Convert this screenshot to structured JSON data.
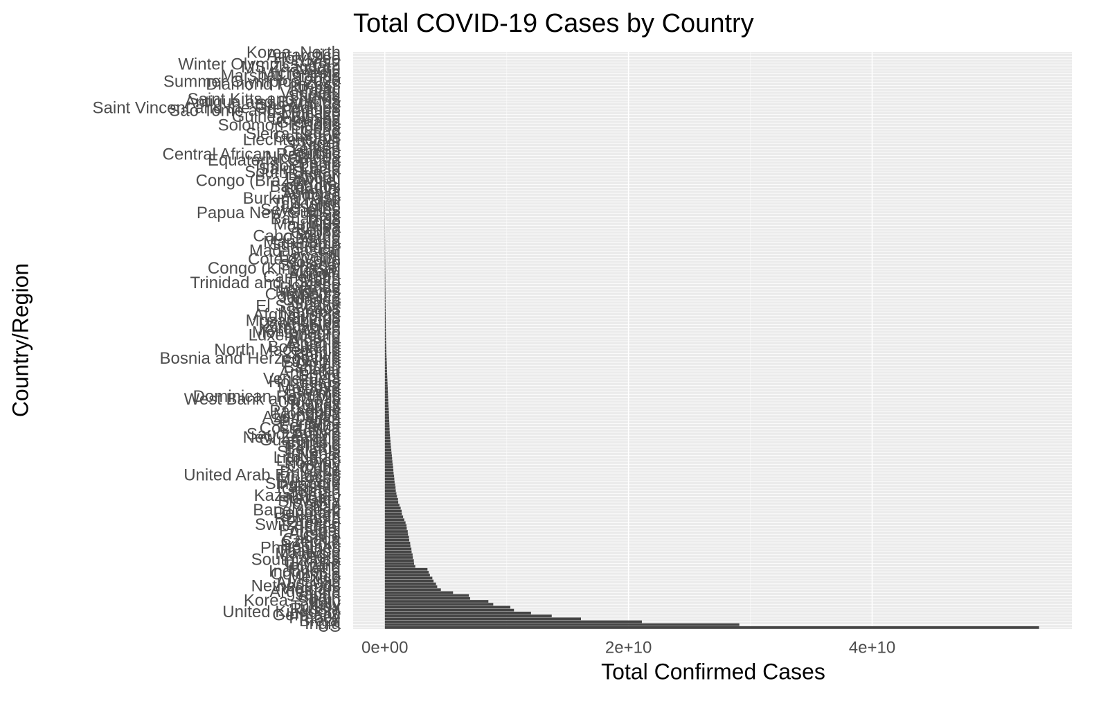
{
  "chart_data": {
    "type": "bar",
    "orientation": "horizontal",
    "title": "Total COVID-19 Cases by Country",
    "x_label": "Total Confirmed Cases",
    "y_label": "Country/Region",
    "color": "#454545",
    "grid": true,
    "xlim": [
      -2600000000.0,
      56400000000.0
    ],
    "xticks": [
      {
        "value": 0,
        "label": "0e+00"
      },
      {
        "value": 20000000000.0,
        "label": "2e+10"
      },
      {
        "value": 40000000000.0,
        "label": "4e+10"
      }
    ],
    "categories": [
      "US",
      "India",
      "Brazil",
      "France",
      "Germany",
      "United Kingdom",
      "Russia",
      "Turkey",
      "Italy",
      "Korea, South",
      "Spain",
      "Japan",
      "Argentina",
      "Vietnam",
      "Netherlands",
      "Australia",
      "Iran",
      "Mexico",
      "Colombia",
      "Indonesia",
      "Poland",
      "Taiwan*",
      "Ukraine",
      "South Africa",
      "Peru",
      "Malaysia",
      "Thailand",
      "Philippines",
      "Belgium",
      "Czechia",
      "Canada",
      "Chile",
      "Austria",
      "Portugal",
      "Israel",
      "Switzerland",
      "Greece",
      "Romania",
      "Sweden",
      "Denmark",
      "Bangladesh",
      "Iraq",
      "Serbia",
      "Slovakia",
      "Hungary",
      "Kazakhstan",
      "Jordan",
      "Georgia",
      "Pakistan",
      "Singapore",
      "Ireland",
      "Morocco",
      "United Arab Emirates",
      "Bulgaria",
      "Cuba",
      "Croatia",
      "Norway",
      "Lebanon",
      "Lithuania",
      "Nepal",
      "Slovenia",
      "Belarus",
      "Finland",
      "Tunisia",
      "Guatemala",
      "New Zealand",
      "Saudi Arabia",
      "Bolivia",
      "Costa Rica",
      "Ecuador",
      "Panama",
      "Sri Lanka",
      "Azerbaijan",
      "Mongolia",
      "Paraguay",
      "Latvia",
      "Kuwait",
      "Uruguay",
      "West Bank and Gaza",
      "Dominican Republic",
      "Burma",
      "Estonia",
      "Moldova",
      "Libya",
      "Honduras",
      "Venezuela",
      "Egypt",
      "Armenia",
      "Qatar",
      "Bahrain",
      "Oman",
      "Ethiopia",
      "Bosnia and Herzegovina",
      "Kenya",
      "Zambia",
      "North Macedonia",
      "Botswana",
      "Albania",
      "Algeria",
      "Nigeria",
      "Luxembourg",
      "Montenegro",
      "Kyrgyzstan",
      "Zimbabwe",
      "Uzbekistan",
      "Mozambique",
      "Cyprus",
      "Afghanistan",
      "Namibia",
      "Laos",
      "El Salvador",
      "Ghana",
      "Uganda",
      "Jamaica",
      "Cambodia",
      "Maldives",
      "Rwanda",
      "Iceland",
      "Trinidad and Tobago",
      "Malta",
      "Cameroon",
      "Angola",
      "Malawi",
      "Congo (Kinshasa)",
      "Senegal",
      "Kosovo",
      "Cote d'Ivoire",
      "Eswatini",
      "Fiji",
      "Madagascar",
      "Sudan",
      "Suriname",
      "Mauritania",
      "Guyana",
      "Cabo Verde",
      "Gabon",
      "Belize",
      "Guinea",
      "Mauritius",
      "Togo",
      "Bahamas",
      "Haiti",
      "Papua New Guinea",
      "Seychelles",
      "Lesotho",
      "Tajikistan",
      "Mali",
      "Burkina Faso",
      "Andorra",
      "Somalia",
      "Burundi",
      "Barbados",
      "Brunei",
      "Congo (Brazzaville)",
      "Djibouti",
      "Bhutan",
      "South Sudan",
      "Saint Lucia",
      "Timor-Leste",
      "Benin",
      "Equatorial Guinea",
      "Nicaragua",
      "Central African Republic",
      "Gambia",
      "Yemen",
      "Eritrea",
      "Niger",
      "Liechtenstein",
      "Comoros",
      "Sierra Leone",
      "Chad",
      "Liberia",
      "Solomon Islands",
      "Grenada",
      "Dominica",
      "Guinea-Bissau",
      "Monaco",
      "Sao Tome and Principe",
      "Saint Vincent and the Grenadines",
      "San Marino",
      "Antigua and Barbuda",
      "Saint Kitts and Nevis",
      "Samoa",
      "Vanuatu",
      "Palau",
      "Kiribati",
      "Diamond Princess",
      "Summer Olympics 2020",
      "Tonga",
      "Marshall Islands",
      "Micronesia",
      "Nauru",
      "MS Zaandam",
      "Winter Olympics 2022",
      "Tuvalu",
      "Holy See",
      "Antarctica",
      "Korea, North"
    ],
    "values": [
      53700000000.0,
      29100000000.0,
      21100000000.0,
      16100000000.0,
      13700000000.0,
      12000000000.0,
      10600000000.0,
      10300000000.0,
      8900000000.0,
      8500000000.0,
      7000000000.0,
      6900000000.0,
      5600000000.0,
      4600000000.0,
      4300000000.0,
      4200000000.0,
      4000000000.0,
      3900000000.0,
      3700000000.0,
      3600000000.0,
      3500000000.0,
      2500000000.0,
      2400000000.0,
      2380000000.0,
      2300000000.0,
      2280000000.0,
      2200000000.0,
      2180000000.0,
      2100000000.0,
      2080000000.0,
      2000000000.0,
      1980000000.0,
      1900000000.0,
      1880000000.0,
      1800000000.0,
      1780000000.0,
      1700000000.0,
      1600000000.0,
      1500000000.0,
      1400000000.0,
      1380000000.0,
      1300000000.0,
      1200000000.0,
      1100000000.0,
      1080000000.0,
      1000000000.0,
      950000000.0,
      900000000.0,
      880000000.0,
      850000000.0,
      800000000.0,
      780000000.0,
      760000000.0,
      720000000.0,
      700000000.0,
      680000000.0,
      650000000.0,
      620000000.0,
      600000000.0,
      580000000.0,
      550000000.0,
      530000000.0,
      500000000.0,
      480000000.0,
      460000000.0,
      440000000.0,
      420000000.0,
      400000000.0,
      390000000.0,
      380000000.0,
      370000000.0,
      360000000.0,
      350000000.0,
      340000000.0,
      330000000.0,
      320000000.0,
      300000000.0,
      290000000.0,
      280000000.0,
      270000000.0,
      260000000.0,
      250000000.0,
      240000000.0,
      230000000.0,
      220000000.0,
      210000000.0,
      200000000.0,
      190000000.0,
      180000000.0,
      175000000.0,
      170000000.0,
      160000000.0,
      150000000.0,
      140000000.0,
      130000000.0,
      125000000.0,
      120000000.0,
      110000000.0,
      105000000.0,
      100000000.0,
      95000000.0,
      90000000.0,
      85000000.0,
      80000000.0,
      78000000.0,
      75000000.0,
      72000000.0,
      70000000.0,
      66000000.0,
      63000000.0,
      60000000.0,
      58000000.0,
      55000000.0,
      52000000.0,
      50000000.0,
      48000000.0,
      45000000.0,
      43000000.0,
      41000000.0,
      40000000.0,
      38000000.0,
      36000000.0,
      34000000.0,
      32000000.0,
      30000000.0,
      29000000.0,
      28000000.0,
      26000000.0,
      25000000.0,
      24000000.0,
      23000000.0,
      22000000.0,
      21000000.0,
      20000000.0,
      19000000.0,
      18000000.0,
      17000000.0,
      16000000.0,
      15000000.0,
      14000000.0,
      13000000.0,
      12000000.0,
      11000000.0,
      10500000.0,
      10000000.0,
      9500000.0,
      9000000.0,
      8500000.0,
      8000000.0,
      7800000.0,
      7500000.0,
      7000000.0,
      6800000.0,
      6500000.0,
      6000000.0,
      5800000.0,
      5500000.0,
      5000000.0,
      4800000.0,
      4500000.0,
      4300000.0,
      4000000.0,
      3800000.0,
      3600000.0,
      3400000.0,
      3200000.0,
      3000000.0,
      2800000.0,
      2600000.0,
      2400000.0,
      2200000.0,
      2000000.0,
      1900000.0,
      1800000.0,
      1700000.0,
      1600000.0,
      1500000.0,
      1400000.0,
      1300000.0,
      1200000.0,
      1100000.0,
      1000000.0,
      900000.0,
      700000.0,
      500000.0,
      400000.0,
      200000.0,
      100000.0,
      100000.0,
      80000.0,
      50000.0,
      40000.0,
      20000.0,
      10000.0,
      10000.0,
      5000.0,
      3000.0,
      1000.0
    ]
  }
}
